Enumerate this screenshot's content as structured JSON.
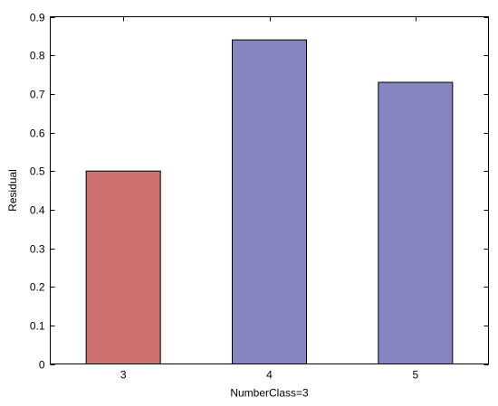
{
  "chart_data": {
    "type": "bar",
    "categories": [
      "3",
      "4",
      "5"
    ],
    "values": [
      0.5,
      0.84,
      0.73
    ],
    "bar_colors": [
      "#cc7070",
      "#8585c0",
      "#8585c0"
    ],
    "xlabel": "NumberClass=3",
    "ylabel": "Residual",
    "ylim": [
      0,
      0.9
    ],
    "yticks": [
      "0",
      "0.1",
      "0.2",
      "0.3",
      "0.4",
      "0.5",
      "0.6",
      "0.7",
      "0.8",
      "0.9"
    ],
    "grid": false,
    "legend": "none"
  }
}
